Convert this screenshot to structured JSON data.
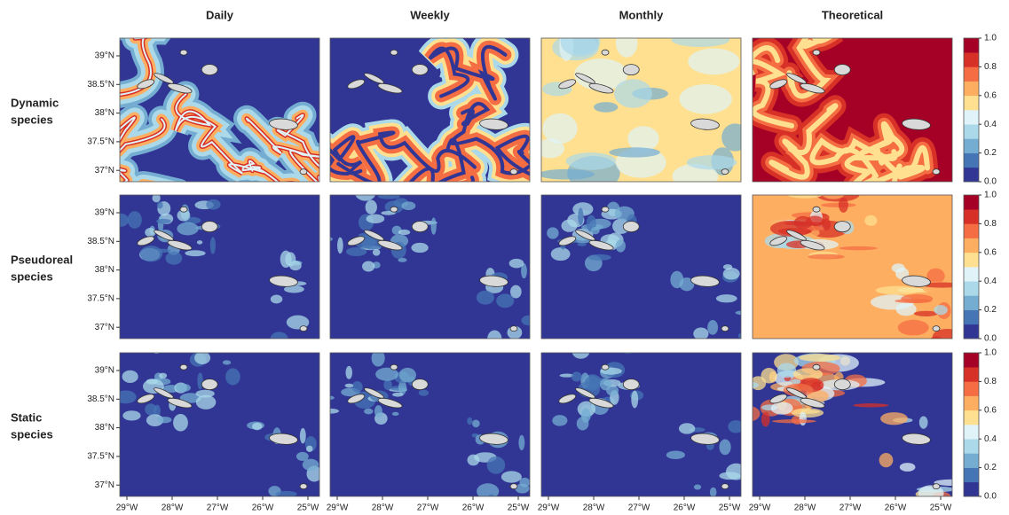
{
  "column_titles": [
    "Daily",
    "Weekly",
    "Monthly",
    "Theoretical"
  ],
  "row_labels": [
    [
      "Dynamic",
      "species"
    ],
    [
      "Pseudoreal",
      "species"
    ],
    [
      "Static",
      "species"
    ]
  ],
  "lat_ticks": [
    {
      "value": 39,
      "label": "39°N"
    },
    {
      "value": 38.5,
      "label": "38.5°N"
    },
    {
      "value": 38,
      "label": "38°N"
    },
    {
      "value": 37.5,
      "label": "37.5°N"
    },
    {
      "value": 37,
      "label": "37°N"
    }
  ],
  "lon_ticks": [
    {
      "value": -29,
      "label": "29°W"
    },
    {
      "value": -28,
      "label": "28°W"
    },
    {
      "value": -27,
      "label": "27°W"
    },
    {
      "value": -26,
      "label": "26°W"
    },
    {
      "value": -25,
      "label": "25°W"
    }
  ],
  "colorbar": {
    "ticks": [
      {
        "value": 0,
        "label": "0.0"
      },
      {
        "value": 0.2,
        "label": "0.2"
      },
      {
        "value": 0.4,
        "label": "0.4"
      },
      {
        "value": 0.6,
        "label": "0.6"
      },
      {
        "value": 0.8,
        "label": "0.8"
      },
      {
        "value": 1,
        "label": "1.0"
      }
    ],
    "colors": [
      "#313695",
      "#4575b4",
      "#74add1",
      "#abd9e9",
      "#e0f3f8",
      "#fee090",
      "#fdae61",
      "#f46d43",
      "#d73027",
      "#a50026"
    ]
  }
}
